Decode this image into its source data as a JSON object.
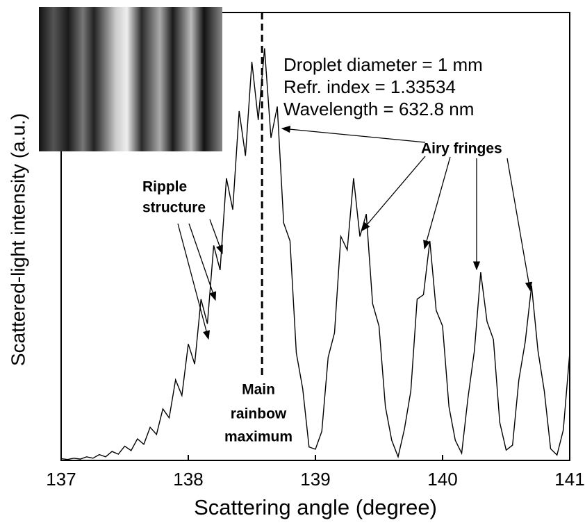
{
  "chart_data": {
    "type": "line",
    "xlabel": "Scattering angle (degree)",
    "ylabel": "Scattered-light intensity (a.u.)",
    "annotations": {
      "parameters": [
        "Droplet diameter = 1 mm",
        "Refr. index = 1.33534",
        "Wavelength = 632.8 nm"
      ],
      "airy": "Airy fringes",
      "ripple": [
        "Ripple",
        "structure"
      ],
      "rainbow": [
        "Main",
        "rainbow",
        "maximum"
      ]
    },
    "rainbow_angle": 138.58,
    "color": "#000000",
    "x": [
      137,
      137.05,
      137.1,
      137.15,
      137.2,
      137.25,
      137.3,
      137.35,
      137.4,
      137.45,
      137.5,
      137.55,
      137.6,
      137.65,
      137.7,
      137.75,
      137.8,
      137.85,
      137.9,
      137.95,
      138,
      138.05,
      138.1,
      138.15,
      138.2,
      138.25,
      138.3,
      138.35,
      138.4,
      138.45,
      138.5,
      138.55,
      138.6,
      138.65,
      138.7,
      138.75,
      138.8,
      138.85,
      138.9,
      138.95,
      139,
      139.05,
      139.1,
      139.15,
      139.2,
      139.25,
      139.3,
      139.35,
      139.4,
      139.45,
      139.5,
      139.55,
      139.6,
      139.65,
      139.7,
      139.75,
      139.8,
      139.85,
      139.9,
      139.95,
      140,
      140.05,
      140.1,
      140.15,
      140.2,
      140.25,
      140.3,
      140.35,
      140.4,
      140.45,
      140.5,
      140.55,
      140.6,
      140.65,
      140.7,
      140.75,
      140.8,
      140.85,
      140.9,
      140.95,
      141
    ],
    "values": [
      0.4,
      0.2,
      0.5,
      0.3,
      0.8,
      0.5,
      1.3,
      0.8,
      2,
      1.4,
      3.2,
      2.2,
      4.8,
      3.6,
      7.4,
      5.8,
      11.5,
      9.5,
      18,
      14.5,
      26,
      21.5,
      36,
      30.5,
      48,
      42.5,
      63,
      56,
      78,
      68,
      89,
      76,
      92,
      72,
      79,
      53,
      49,
      24,
      16,
      3,
      2.5,
      6.5,
      23,
      28.5,
      50,
      47,
      63,
      50,
      55,
      35,
      30,
      12,
      4.5,
      0.8,
      7,
      15.5,
      36,
      37,
      49,
      33.5,
      30,
      12,
      4.5,
      1.6,
      14,
      24.5,
      42,
      31,
      27,
      8.5,
      2.3,
      3.4,
      18,
      26.5,
      39,
      24.5,
      15.5,
      2.6,
      1.2,
      6.8,
      24
    ],
    "xlim": [
      137,
      141
    ],
    "xticks": [
      137,
      138,
      139,
      140,
      141
    ],
    "ylim": [
      0,
      100
    ]
  }
}
